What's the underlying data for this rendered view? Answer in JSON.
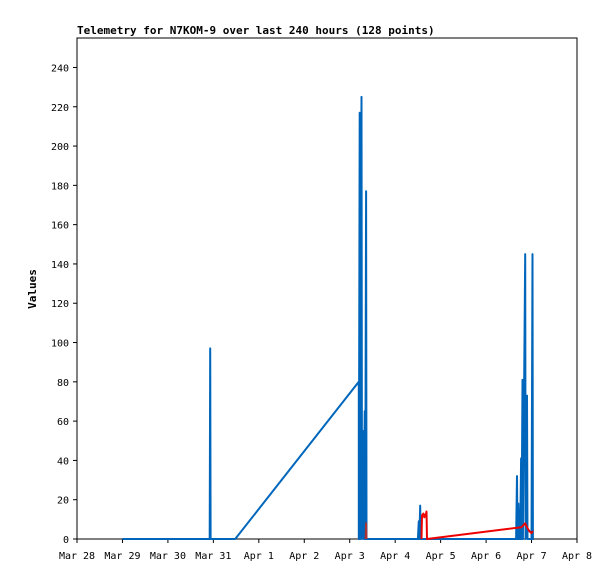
{
  "chart_data": {
    "type": "line",
    "title": "Telemetry for N7KOM-9 over last 240 hours (128 points)",
    "xlabel": "",
    "ylabel": "Values",
    "x_ticks": [
      "Mar 28",
      "Mar 29",
      "Mar 30",
      "Mar 31",
      "Apr 1",
      "Apr 2",
      "Apr 3",
      "Apr 4",
      "Apr 5",
      "Apr 6",
      "Apr 7",
      "Apr 8"
    ],
    "xlim": [
      0,
      11
    ],
    "y_ticks": [
      "0",
      "20",
      "40",
      "60",
      "80",
      "100",
      "120",
      "140",
      "160",
      "180",
      "200",
      "220",
      "240"
    ],
    "ylim": [
      0,
      255
    ],
    "grid": false,
    "legend": "none",
    "series": [
      {
        "color": "#0066bb",
        "points": [
          [
            1.0,
            0
          ],
          [
            2.9,
            0
          ],
          [
            3.2,
            0
          ],
          [
            3.35,
            0
          ],
          [
            3.48,
            0
          ],
          [
            6.2,
            80
          ],
          [
            6.2,
            0
          ],
          [
            6.22,
            217
          ],
          [
            6.23,
            0
          ],
          [
            6.26,
            225
          ],
          [
            6.27,
            0
          ],
          [
            6.29,
            30
          ],
          [
            6.3,
            55
          ],
          [
            6.31,
            0
          ],
          [
            6.33,
            65
          ],
          [
            6.34,
            0
          ],
          [
            6.36,
            177
          ],
          [
            6.37,
            0
          ],
          [
            7.5,
            0
          ],
          [
            7.52,
            9
          ],
          [
            7.53,
            0
          ],
          [
            7.55,
            17
          ],
          [
            7.56,
            0
          ],
          [
            9.66,
            0
          ],
          [
            9.68,
            32
          ],
          [
            9.69,
            0
          ],
          [
            9.71,
            18
          ],
          [
            9.72,
            0
          ],
          [
            9.74,
            15
          ],
          [
            9.75,
            0
          ],
          [
            9.77,
            41
          ],
          [
            9.78,
            0
          ],
          [
            9.8,
            81
          ],
          [
            9.81,
            0
          ],
          [
            9.86,
            145
          ],
          [
            9.87,
            0
          ],
          [
            9.9,
            73
          ],
          [
            9.91,
            0
          ],
          [
            10.0,
            0
          ],
          [
            10.02,
            145
          ],
          [
            10.03,
            0
          ],
          [
            10.05,
            0
          ]
        ]
      },
      {
        "color": "#0066bb",
        "points": [
          [
            2.92,
            0
          ],
          [
            2.93,
            97
          ],
          [
            2.94,
            0
          ]
        ]
      },
      {
        "color": "#aa3333",
        "points": [
          [
            6.35,
            0
          ],
          [
            6.36,
            8
          ],
          [
            6.37,
            0
          ]
        ]
      },
      {
        "color": "#ee0000",
        "points": [
          [
            7.58,
            0
          ],
          [
            7.59,
            12
          ],
          [
            7.62,
            13
          ],
          [
            7.64,
            11
          ],
          [
            7.66,
            12
          ],
          [
            7.68,
            13
          ],
          [
            7.69,
            14
          ],
          [
            7.7,
            0
          ],
          [
            9.78,
            6
          ],
          [
            9.82,
            7
          ],
          [
            9.86,
            8
          ],
          [
            9.9,
            6
          ],
          [
            9.95,
            4
          ],
          [
            10.0,
            3
          ],
          [
            10.03,
            4
          ]
        ]
      }
    ]
  }
}
